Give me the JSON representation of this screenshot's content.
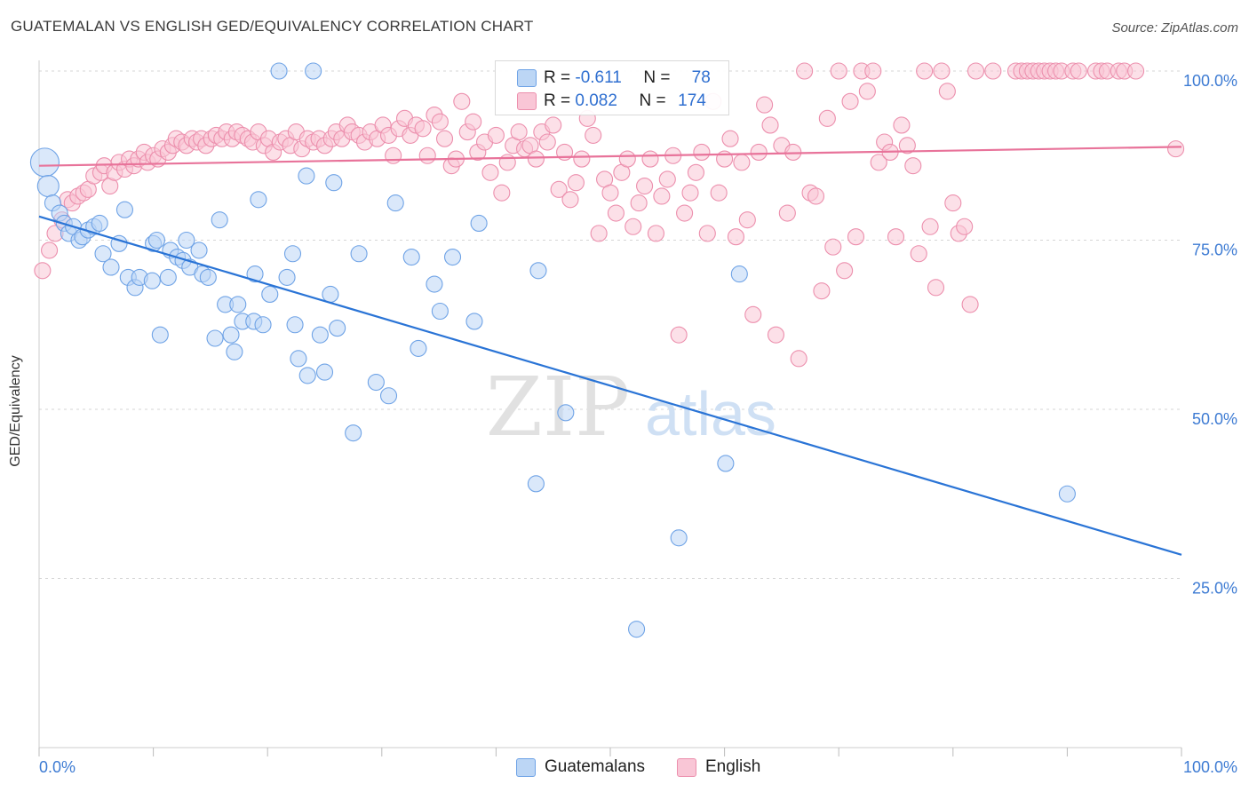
{
  "title": "GUATEMALAN VS ENGLISH GED/EQUIVALENCY CORRELATION CHART",
  "source": "Source: ZipAtlas.com",
  "watermark": {
    "zip": "ZIP",
    "atlas": "atlas"
  },
  "legend_top": [
    {
      "r_label": "R = ",
      "r_value": "-0.611",
      "n_label": "N = ",
      "n_value": "78",
      "color": "#a8c8f0"
    },
    {
      "r_label": "R = ",
      "r_value": "0.082",
      "n_label": "N = ",
      "n_value": "174",
      "color": "#f7b6c8"
    }
  ],
  "chart_data": {
    "type": "scatter",
    "ylabel": "GED/Equivalency",
    "xlim": [
      0,
      100
    ],
    "ylim": [
      0,
      100
    ],
    "x_tick_labels": [
      "0.0%",
      "100.0%"
    ],
    "y_ticks": [
      25,
      50,
      75,
      100
    ],
    "y_tick_labels": [
      "25.0%",
      "50.0%",
      "75.0%",
      "100.0%"
    ],
    "grid": true,
    "series": [
      {
        "name": "Guatemalans",
        "color": "#6fa3e6",
        "fill": "#bcd6f5",
        "trend": {
          "x": [
            0,
            100
          ],
          "y": [
            78.5,
            28.5
          ],
          "color": "#2a74d6"
        },
        "points": [
          [
            0.5,
            86.5
          ],
          [
            0.8,
            83
          ],
          [
            1.2,
            80.5
          ],
          [
            1.8,
            79
          ],
          [
            2.2,
            77.5
          ],
          [
            2.6,
            76
          ],
          [
            3.0,
            77
          ],
          [
            3.5,
            75
          ],
          [
            3.8,
            75.5
          ],
          [
            4.3,
            76.5
          ],
          [
            4.8,
            77
          ],
          [
            5.3,
            77.5
          ],
          [
            5.6,
            73
          ],
          [
            6.3,
            71
          ],
          [
            7.0,
            74.5
          ],
          [
            7.5,
            79.5
          ],
          [
            7.8,
            69.5
          ],
          [
            8.4,
            68
          ],
          [
            8.8,
            69.5
          ],
          [
            9.9,
            69
          ],
          [
            10.0,
            74.5
          ],
          [
            10.3,
            75
          ],
          [
            10.6,
            61
          ],
          [
            11.3,
            69.5
          ],
          [
            11.5,
            73.5
          ],
          [
            12.1,
            72.5
          ],
          [
            12.6,
            72
          ],
          [
            12.9,
            75
          ],
          [
            13.2,
            71
          ],
          [
            14.0,
            73.5
          ],
          [
            14.3,
            70
          ],
          [
            14.8,
            69.5
          ],
          [
            15.4,
            60.5
          ],
          [
            15.8,
            78
          ],
          [
            16.3,
            65.5
          ],
          [
            16.8,
            61
          ],
          [
            17.1,
            58.5
          ],
          [
            17.4,
            65.5
          ],
          [
            17.8,
            63
          ],
          [
            18.8,
            63
          ],
          [
            18.9,
            70
          ],
          [
            19.2,
            81
          ],
          [
            19.6,
            62.5
          ],
          [
            20.2,
            67
          ],
          [
            21.0,
            100
          ],
          [
            21.7,
            69.5
          ],
          [
            22.2,
            73
          ],
          [
            22.4,
            62.5
          ],
          [
            22.7,
            57.5
          ],
          [
            23.5,
            55
          ],
          [
            23.4,
            84.5
          ],
          [
            24.0,
            100
          ],
          [
            24.6,
            61
          ],
          [
            25.0,
            55.5
          ],
          [
            25.5,
            67
          ],
          [
            25.8,
            83.5
          ],
          [
            26.1,
            62
          ],
          [
            27.5,
            46.5
          ],
          [
            28.0,
            73
          ],
          [
            29.5,
            54
          ],
          [
            30.6,
            52
          ],
          [
            31.2,
            80.5
          ],
          [
            32.6,
            72.5
          ],
          [
            33.2,
            59
          ],
          [
            34.6,
            68.5
          ],
          [
            35.1,
            64.5
          ],
          [
            36.2,
            72.5
          ],
          [
            38.1,
            63
          ],
          [
            38.5,
            77.5
          ],
          [
            43.5,
            39
          ],
          [
            43.7,
            70.5
          ],
          [
            46.1,
            49.5
          ],
          [
            52.3,
            17.5
          ],
          [
            56.0,
            31
          ],
          [
            60.1,
            42
          ],
          [
            61.3,
            70
          ],
          [
            90.0,
            37.5
          ]
        ]
      },
      {
        "name": "English",
        "color": "#ec8fad",
        "fill": "#f9c6d6",
        "trend": {
          "x": [
            0,
            100
          ],
          "y": [
            86,
            88.8
          ],
          "color": "#e8739a"
        },
        "points": [
          [
            0.3,
            70.5
          ],
          [
            0.9,
            73.5
          ],
          [
            1.4,
            76
          ],
          [
            2.0,
            78
          ],
          [
            2.5,
            81
          ],
          [
            2.9,
            80.5
          ],
          [
            3.4,
            81.5
          ],
          [
            3.9,
            82
          ],
          [
            4.3,
            82.5
          ],
          [
            4.8,
            84.5
          ],
          [
            5.4,
            85
          ],
          [
            5.7,
            86
          ],
          [
            6.2,
            83
          ],
          [
            6.6,
            85
          ],
          [
            7.0,
            86.5
          ],
          [
            7.5,
            85.5
          ],
          [
            7.9,
            87
          ],
          [
            8.3,
            86
          ],
          [
            8.7,
            87
          ],
          [
            9.2,
            88
          ],
          [
            9.5,
            86.5
          ],
          [
            10.0,
            87.5
          ],
          [
            10.4,
            87
          ],
          [
            10.8,
            88.5
          ],
          [
            11.3,
            88
          ],
          [
            11.7,
            89
          ],
          [
            12.0,
            90
          ],
          [
            12.5,
            89.5
          ],
          [
            12.9,
            89
          ],
          [
            13.4,
            90
          ],
          [
            13.8,
            89.5
          ],
          [
            14.2,
            90
          ],
          [
            14.6,
            89
          ],
          [
            15.1,
            90
          ],
          [
            15.5,
            90.5
          ],
          [
            16.0,
            90
          ],
          [
            16.4,
            91
          ],
          [
            16.9,
            90
          ],
          [
            17.3,
            91
          ],
          [
            17.8,
            90.5
          ],
          [
            18.3,
            90
          ],
          [
            18.7,
            89.5
          ],
          [
            19.2,
            91
          ],
          [
            19.7,
            89
          ],
          [
            20.1,
            90
          ],
          [
            20.5,
            88
          ],
          [
            21.1,
            89.5
          ],
          [
            21.6,
            90
          ],
          [
            22.0,
            89
          ],
          [
            22.5,
            91
          ],
          [
            23.0,
            88.5
          ],
          [
            23.5,
            90
          ],
          [
            24.0,
            89.5
          ],
          [
            24.5,
            90
          ],
          [
            25.0,
            89
          ],
          [
            25.6,
            90
          ],
          [
            26.0,
            91
          ],
          [
            26.5,
            90
          ],
          [
            27.0,
            92
          ],
          [
            27.4,
            91
          ],
          [
            28.0,
            90.5
          ],
          [
            28.5,
            89.5
          ],
          [
            29.0,
            91
          ],
          [
            29.6,
            90
          ],
          [
            30.1,
            92
          ],
          [
            30.6,
            90.5
          ],
          [
            31.0,
            87.5
          ],
          [
            31.5,
            91.5
          ],
          [
            32.0,
            93
          ],
          [
            32.5,
            90.5
          ],
          [
            33.0,
            92
          ],
          [
            33.6,
            91.5
          ],
          [
            34.0,
            87.5
          ],
          [
            34.6,
            93.5
          ],
          [
            35.1,
            92.5
          ],
          [
            35.5,
            90
          ],
          [
            36.1,
            86
          ],
          [
            36.5,
            87
          ],
          [
            37.0,
            95.5
          ],
          [
            37.5,
            91
          ],
          [
            38.0,
            92.5
          ],
          [
            38.4,
            88
          ],
          [
            39.0,
            89.5
          ],
          [
            39.5,
            85
          ],
          [
            40.0,
            90.5
          ],
          [
            40.5,
            82
          ],
          [
            41.0,
            86.5
          ],
          [
            41.5,
            89
          ],
          [
            42.0,
            91
          ],
          [
            42.5,
            88.5
          ],
          [
            43.0,
            89
          ],
          [
            43.5,
            87
          ],
          [
            44.0,
            91
          ],
          [
            44.5,
            89.5
          ],
          [
            45.0,
            92
          ],
          [
            45.5,
            82.5
          ],
          [
            46.0,
            88
          ],
          [
            46.5,
            81
          ],
          [
            47.0,
            83.5
          ],
          [
            47.5,
            87
          ],
          [
            48.0,
            93
          ],
          [
            48.5,
            90.5
          ],
          [
            49.0,
            76
          ],
          [
            49.5,
            84
          ],
          [
            50.0,
            82
          ],
          [
            50.5,
            79
          ],
          [
            51.0,
            85
          ],
          [
            51.5,
            87
          ],
          [
            52.0,
            77
          ],
          [
            52.5,
            80.5
          ],
          [
            53.0,
            83
          ],
          [
            53.5,
            87
          ],
          [
            54.0,
            76
          ],
          [
            54.5,
            81.5
          ],
          [
            55.0,
            84
          ],
          [
            55.5,
            87.5
          ],
          [
            56.0,
            61
          ],
          [
            56.5,
            79
          ],
          [
            57.0,
            82
          ],
          [
            57.5,
            85
          ],
          [
            58.0,
            88
          ],
          [
            58.5,
            76
          ],
          [
            59.0,
            95.5
          ],
          [
            59.5,
            82
          ],
          [
            60.0,
            87
          ],
          [
            60.5,
            90
          ],
          [
            61.0,
            75.5
          ],
          [
            61.5,
            86.5
          ],
          [
            62.0,
            78
          ],
          [
            62.5,
            64
          ],
          [
            63.0,
            88
          ],
          [
            63.5,
            95
          ],
          [
            64.0,
            92
          ],
          [
            64.5,
            61
          ],
          [
            65.0,
            89
          ],
          [
            65.5,
            79
          ],
          [
            66.0,
            88
          ],
          [
            66.5,
            57.5
          ],
          [
            67.0,
            100
          ],
          [
            67.5,
            82
          ],
          [
            68.0,
            81.5
          ],
          [
            68.5,
            67.5
          ],
          [
            69.0,
            93
          ],
          [
            69.5,
            74
          ],
          [
            70.0,
            100
          ],
          [
            70.5,
            70.5
          ],
          [
            71.0,
            95.5
          ],
          [
            71.5,
            75.5
          ],
          [
            72.0,
            100
          ],
          [
            72.5,
            97
          ],
          [
            73.0,
            100
          ],
          [
            73.5,
            86.5
          ],
          [
            74.0,
            89.5
          ],
          [
            74.5,
            88
          ],
          [
            75.0,
            75.5
          ],
          [
            75.5,
            92
          ],
          [
            76.0,
            89
          ],
          [
            76.5,
            86
          ],
          [
            77.0,
            73
          ],
          [
            77.5,
            100
          ],
          [
            78.0,
            77
          ],
          [
            78.5,
            68
          ],
          [
            79.0,
            100
          ],
          [
            79.5,
            97
          ],
          [
            80.0,
            80.5
          ],
          [
            80.5,
            76
          ],
          [
            81.0,
            77
          ],
          [
            81.5,
            65.5
          ],
          [
            82.0,
            100
          ],
          [
            83.5,
            100
          ],
          [
            85.5,
            100
          ],
          [
            86.0,
            100
          ],
          [
            86.5,
            100
          ],
          [
            87.0,
            100
          ],
          [
            87.5,
            100
          ],
          [
            88.0,
            100
          ],
          [
            88.5,
            100
          ],
          [
            89.0,
            100
          ],
          [
            89.5,
            100
          ],
          [
            90.5,
            100
          ],
          [
            91.0,
            100
          ],
          [
            92.5,
            100
          ],
          [
            93.0,
            100
          ],
          [
            93.5,
            100
          ],
          [
            94.5,
            100
          ],
          [
            95.0,
            100
          ],
          [
            96.0,
            100
          ],
          [
            99.5,
            88.5
          ]
        ]
      }
    ]
  }
}
